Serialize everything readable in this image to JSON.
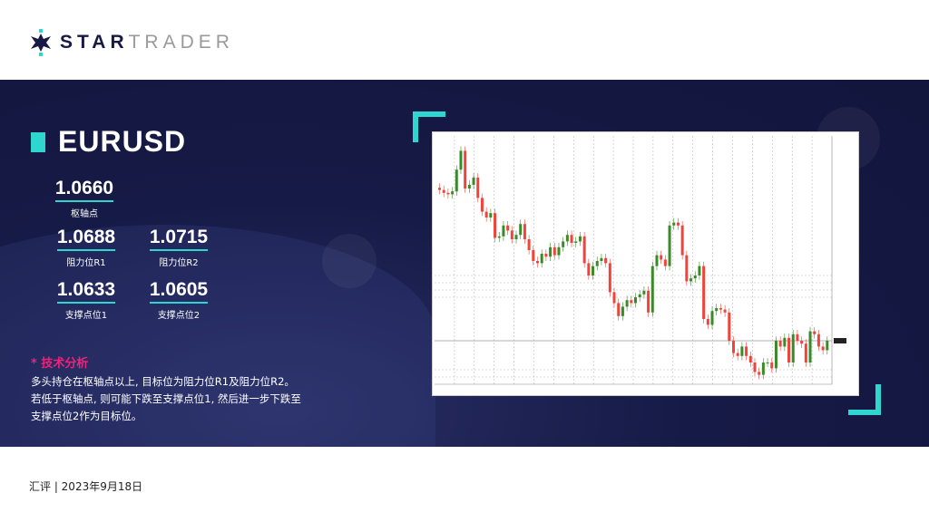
{
  "brand": {
    "name_bold": "STAR",
    "name_light": "TRADER",
    "accent": "#2fd6cf",
    "navy": "#171a45"
  },
  "symbol": "EURUSD",
  "levels": {
    "pivot": {
      "value": "1.0660",
      "label": "枢轴点"
    },
    "r1": {
      "value": "1.0688",
      "label": "阻力位R1"
    },
    "r2": {
      "value": "1.0715",
      "label": "阻力位R2"
    },
    "s1": {
      "value": "1.0633",
      "label": "支撑点位1"
    },
    "s2": {
      "value": "1.0605",
      "label": "支撑点位2"
    }
  },
  "analysis": {
    "heading": "* 技术分析",
    "lines": [
      "多头持仓在枢轴点以上, 目标位为阻力位R1及阻力位R2。",
      "若低于枢轴点, 则可能下跌至支撑点位1, 然后进一步下跌至",
      "支撑点位2作为目标位。"
    ]
  },
  "chart_data": {
    "type": "candlestick",
    "grid": true,
    "up_color": "#3a8a2a",
    "down_color": "#f0443a",
    "closes": [
      1.0868,
      1.0864,
      1.0862,
      1.0866,
      1.0896,
      1.0922,
      1.087,
      1.0875,
      1.0885,
      1.0857,
      1.0838,
      1.083,
      1.0836,
      1.0802,
      1.0804,
      1.0819,
      1.0812,
      1.08,
      1.0806,
      1.0821,
      1.08,
      1.0785,
      1.077,
      1.0767,
      1.078,
      1.0776,
      1.0789,
      1.0778,
      1.0789,
      1.0797,
      1.0806,
      1.0795,
      1.0797,
      1.0804,
      1.0767,
      1.075,
      1.0763,
      1.077,
      1.0774,
      1.0767,
      1.0727,
      1.0712,
      1.0694,
      1.0707,
      1.0716,
      1.0712,
      1.072,
      1.0724,
      1.0729,
      1.0699,
      1.0763,
      1.0778,
      1.0772,
      1.0763,
      1.0819,
      1.0823,
      1.0819,
      1.0778,
      1.0742,
      1.0746,
      1.075,
      1.0763,
      1.069,
      1.0682,
      1.0701,
      1.0705,
      1.0703,
      1.0699,
      1.066,
      1.0643,
      1.0639,
      1.0652,
      1.0639,
      1.063,
      1.0617,
      1.0613,
      1.063,
      1.063,
      1.0622,
      1.066,
      1.0652,
      1.0664,
      1.063,
      1.0669,
      1.066,
      1.0656,
      1.063,
      1.0673,
      1.0669,
      1.0652,
      1.0647,
      1.066
    ],
    "current_price": 1.066
  },
  "footer": "汇评 | 2023年9月18日"
}
